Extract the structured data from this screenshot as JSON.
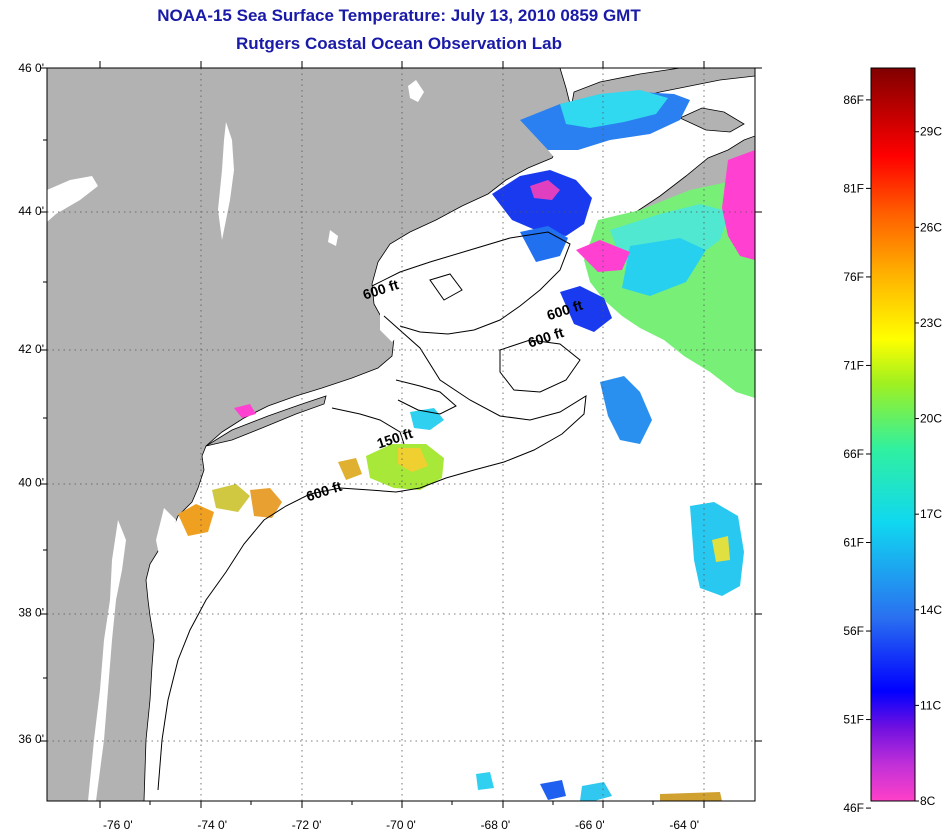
{
  "header": {
    "title": "NOAA-15 Sea Surface Temperature:  July 13, 2010 0859 GMT",
    "subtitle": "Rutgers Coastal Ocean Observation Lab"
  },
  "map": {
    "lat_labels": [
      {
        "lat": 46,
        "label": "46 0'"
      },
      {
        "lat": 44,
        "label": "44 0'"
      },
      {
        "lat": 42,
        "label": "42 0'"
      },
      {
        "lat": 40,
        "label": "40 0'"
      },
      {
        "lat": 38,
        "label": "38 0'"
      },
      {
        "lat": 36,
        "label": "36 0'"
      }
    ],
    "lon_labels": [
      {
        "lon": -76,
        "label": "-76 0'"
      },
      {
        "lon": -74,
        "label": "-74 0'"
      },
      {
        "lon": -72,
        "label": "-72 0'"
      },
      {
        "lon": -70,
        "label": "-70 0'"
      },
      {
        "lon": -68,
        "label": "-68 0'"
      },
      {
        "lon": -66,
        "label": "-66 0'"
      },
      {
        "lon": -64,
        "label": "-64 0'"
      }
    ],
    "contour_labels": [
      {
        "label": "600 ft",
        "lon": -70.4,
        "lat": 42.8
      },
      {
        "label": "600 ft",
        "lon": -66.5,
        "lat": 42.5
      },
      {
        "label": "600 ft",
        "lon": -66.9,
        "lat": 42.1
      },
      {
        "label": "150 ft",
        "lon": -70.1,
        "lat": 40.6
      },
      {
        "label": "600 ft",
        "lon": -71.6,
        "lat": 39.8
      }
    ],
    "colors": {
      "land": "#b2b2b2",
      "water": "#ffffff",
      "grid": "#555555"
    }
  },
  "colorbar": {
    "fahrenheit": [
      "86F",
      "81F",
      "76F",
      "71F",
      "66F",
      "61F",
      "56F",
      "51F",
      "46F"
    ],
    "celsius": [
      "29C",
      "26C",
      "23C",
      "20C",
      "17C",
      "14C",
      "11C",
      "8C"
    ]
  }
}
